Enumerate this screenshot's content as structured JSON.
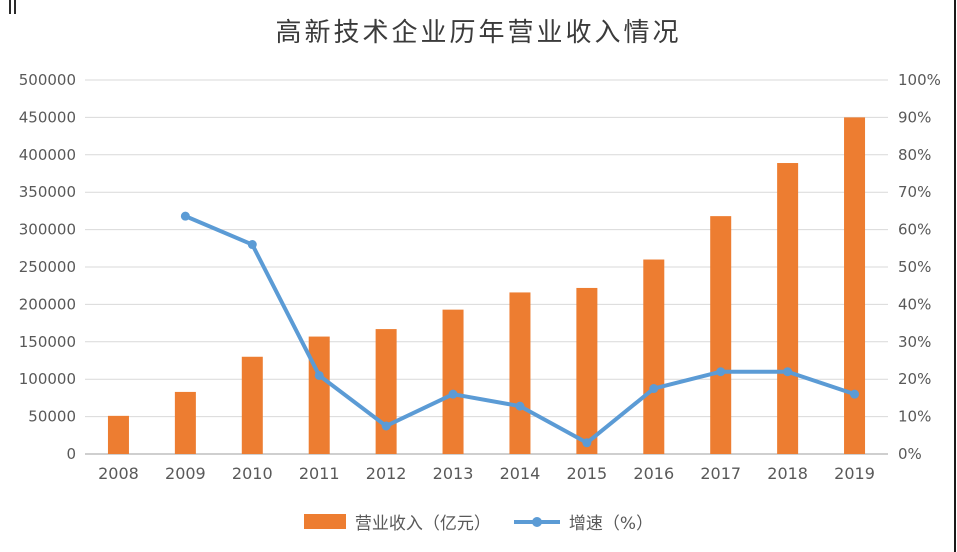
{
  "title": "高新技术企业历年营业收入情况",
  "colors": {
    "bar": "#ED7D31",
    "line": "#5B9BD5",
    "grid": "#D9D9D9",
    "axis": "#BFBFBF",
    "tick_text": "#595959",
    "title_text": "#3B3B3B",
    "border": "#1A1A1A"
  },
  "legend": [
    {
      "label": "营业收入（亿元）",
      "series": "bar"
    },
    {
      "label": "增速（%）",
      "series": "line"
    }
  ],
  "left_axis": {
    "min": 0,
    "max": 500000,
    "step": 50000,
    "ticks": [
      "0",
      "50000",
      "100000",
      "150000",
      "200000",
      "250000",
      "300000",
      "350000",
      "400000",
      "450000",
      "500000"
    ]
  },
  "right_axis": {
    "min": 0,
    "max": 100,
    "step": 10,
    "ticks": [
      "0%",
      "10%",
      "20%",
      "30%",
      "40%",
      "50%",
      "60%",
      "70%",
      "80%",
      "90%",
      "100%"
    ]
  },
  "x_axis": {
    "labels": [
      "2008",
      "2009",
      "2010",
      "2011",
      "2012",
      "2013",
      "2014",
      "2015",
      "2016",
      "2017",
      "2018",
      "2019"
    ]
  },
  "chart_data": {
    "type": "bar",
    "subtype": "combo-bar-line-dual-axis",
    "title": "高新技术企业历年营业收入情况",
    "categories": [
      "2008",
      "2009",
      "2010",
      "2011",
      "2012",
      "2013",
      "2014",
      "2015",
      "2016",
      "2017",
      "2018",
      "2019"
    ],
    "series": [
      {
        "name": "营业收入（亿元）",
        "type": "bar",
        "axis": "left",
        "color": "#ED7D31",
        "values": [
          51000,
          83000,
          130000,
          157000,
          167000,
          193000,
          216000,
          222000,
          260000,
          318000,
          389000,
          450000
        ]
      },
      {
        "name": "增速（%）",
        "type": "line",
        "axis": "right",
        "color": "#5B9BD5",
        "values": [
          null,
          63.6,
          56,
          21,
          7.5,
          16,
          12.8,
          3,
          17.5,
          22,
          22,
          16
        ]
      }
    ],
    "left_ylim": [
      0,
      500000
    ],
    "right_ylim": [
      0,
      100
    ],
    "grid": true,
    "legend_position": "bottom"
  }
}
